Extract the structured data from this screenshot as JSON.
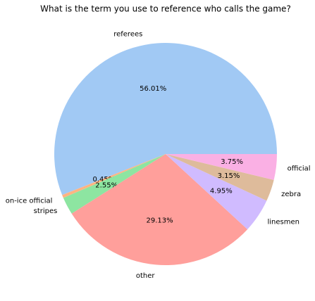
{
  "chart_data": {
    "type": "pie",
    "title": "What is the term you use to reference who calls the game?",
    "categories": [
      "referees",
      "on-ice official",
      "stripes",
      "other",
      "linesmen",
      "zebra",
      "official"
    ],
    "values": [
      56.01,
      0.45,
      2.55,
      29.13,
      4.95,
      3.15,
      3.75
    ],
    "value_labels": [
      "56.01%",
      "0.45%",
      "2.55%",
      "29.13%",
      "4.95%",
      "3.15%",
      "3.75%"
    ],
    "colors": [
      "#a1c9f4",
      "#ffb482",
      "#8de5a1",
      "#ff9f9b",
      "#d0bbff",
      "#debb9b",
      "#fab0e4"
    ]
  }
}
